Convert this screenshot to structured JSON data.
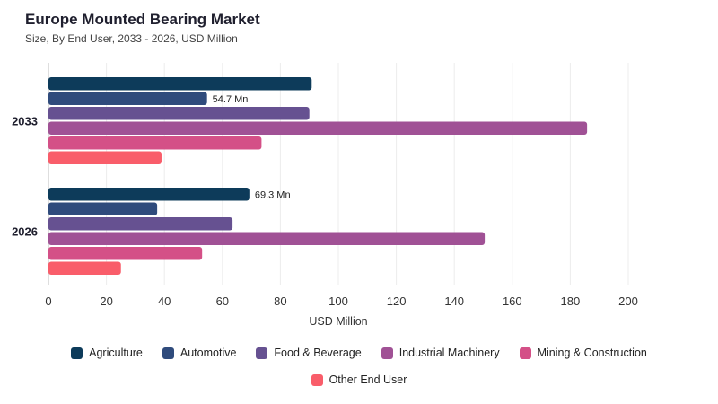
{
  "title": "Europe Mounted Bearing Market",
  "subtitle": "Size, By End User, 2033 - 2026, USD Million",
  "chart_data": {
    "type": "bar",
    "orientation": "horizontal",
    "categories": [
      "2033",
      "2026"
    ],
    "xlabel": "USD Million",
    "ylabel": "",
    "xlim": [
      0,
      200
    ],
    "xticks": [
      "0",
      "20",
      "40",
      "60",
      "80",
      "100",
      "120",
      "140",
      "160",
      "180",
      "200"
    ],
    "grid": true,
    "legend_position": "bottom",
    "series": [
      {
        "name": "Agriculture",
        "color": "#0d3b5a",
        "values": [
          90.8,
          69.3
        ]
      },
      {
        "name": "Automotive",
        "color": "#2f4b7c",
        "values": [
          54.7,
          37.5
        ]
      },
      {
        "name": "Food & Beverage",
        "color": "#665191",
        "values": [
          90.0,
          63.5
        ]
      },
      {
        "name": "Industrial Machinery",
        "color": "#a05195",
        "values": [
          185.8,
          150.5
        ]
      },
      {
        "name": "Mining & Construction",
        "color": "#d45087",
        "values": [
          73.5,
          53.0
        ]
      },
      {
        "name": "Other End User",
        "color": "#f95d6a",
        "values": [
          39.0,
          25.0
        ]
      }
    ],
    "data_labels": [
      {
        "category": "2033",
        "series": "Automotive",
        "text": "54.7 Mn"
      },
      {
        "category": "2026",
        "series": "Agriculture",
        "text": "69.3 Mn"
      }
    ]
  }
}
